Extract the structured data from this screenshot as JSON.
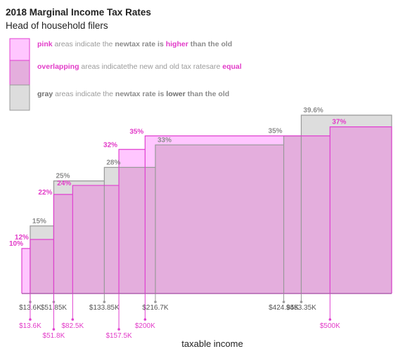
{
  "chart_data": {
    "type": "area",
    "title": "2018 Marginal Income Tax Rates",
    "subtitle": "Head of household filers",
    "xlabel": "taxable income",
    "legend": [
      {
        "key": "pink",
        "parts": [
          {
            "t": "pink",
            "style": "kw"
          },
          {
            "t": " areas indicate the "
          },
          {
            "t": "new",
            "style": "b"
          },
          {
            "br": true
          },
          {
            "t": "tax rate is ",
            "style": "b"
          },
          {
            "t": "higher",
            "style": "kw"
          },
          {
            "t": " than the old",
            "style": "b"
          }
        ]
      },
      {
        "key": "overlap",
        "parts": [
          {
            "t": "overlapping",
            "style": "kw"
          },
          {
            "t": " areas indicate"
          },
          {
            "br": true
          },
          {
            "t": "the new and old tax rates"
          },
          {
            "br": true
          },
          {
            "t": "are "
          },
          {
            "t": "equal",
            "style": "kw"
          }
        ]
      },
      {
        "key": "gray",
        "parts": [
          {
            "t": "gray",
            "style": "kw"
          },
          {
            "t": " areas indicate the "
          },
          {
            "t": "new",
            "style": "b"
          },
          {
            "br": true
          },
          {
            "t": "tax rate is ",
            "style": "b"
          },
          {
            "t": "lower",
            "style": "kw"
          },
          {
            "t": " than the old",
            "style": "b"
          }
        ]
      }
    ],
    "colors": {
      "old_fill": "#dddddd",
      "old_stroke": "#999999",
      "new_fill": "#ffc6ff",
      "new_stroke": "#e040d0",
      "overlap_fill": "#e4aedd",
      "old_text": "#8c8c8c",
      "new_text": "#e23bc8"
    },
    "x_range": [
      0,
      600000
    ],
    "y_range": [
      0,
      0.41
    ],
    "series": [
      {
        "series": "old",
        "brackets": [
          {
            "start": 13600,
            "rate": 0.15,
            "label": "15%"
          },
          {
            "start": 51850,
            "rate": 0.25,
            "label": "25%"
          },
          {
            "start": 133850,
            "rate": 0.28,
            "label": "28%"
          },
          {
            "start": 216700,
            "rate": 0.33,
            "label": "33%"
          },
          {
            "start": 424950,
            "rate": 0.35,
            "label": "35%"
          },
          {
            "start": 453350,
            "rate": 0.396,
            "label": "39.6%"
          }
        ],
        "ticks": [
          {
            "value": 13600,
            "label": "$13.6K"
          },
          {
            "value": 51850,
            "label": "$51.85K"
          },
          {
            "value": 133850,
            "label": "$133.85K"
          },
          {
            "value": 216700,
            "label": "$216.7K"
          },
          {
            "value": 424950,
            "label": "$424.95K"
          },
          {
            "value": 453350,
            "label": "$453.35K"
          }
        ]
      },
      {
        "series": "new",
        "brackets": [
          {
            "start": 0,
            "rate": 0.1,
            "label": "10%"
          },
          {
            "start": 13600,
            "rate": 0.12,
            "label": "12%"
          },
          {
            "start": 51800,
            "rate": 0.22,
            "label": "22%"
          },
          {
            "start": 82500,
            "rate": 0.24,
            "label": "24%"
          },
          {
            "start": 157500,
            "rate": 0.32,
            "label": "32%"
          },
          {
            "start": 200000,
            "rate": 0.35,
            "label": "35%"
          },
          {
            "start": 500000,
            "rate": 0.37,
            "label": "37%"
          }
        ],
        "ticks": [
          {
            "value": 13600,
            "label": "$13.6K"
          },
          {
            "value": 51800,
            "label": "$51.8K"
          },
          {
            "value": 82500,
            "label": "$82.5K"
          },
          {
            "value": 157500,
            "label": "$157.5K"
          },
          {
            "value": 200000,
            "label": "$200K"
          },
          {
            "value": 500000,
            "label": "$500K"
          }
        ]
      }
    ]
  }
}
